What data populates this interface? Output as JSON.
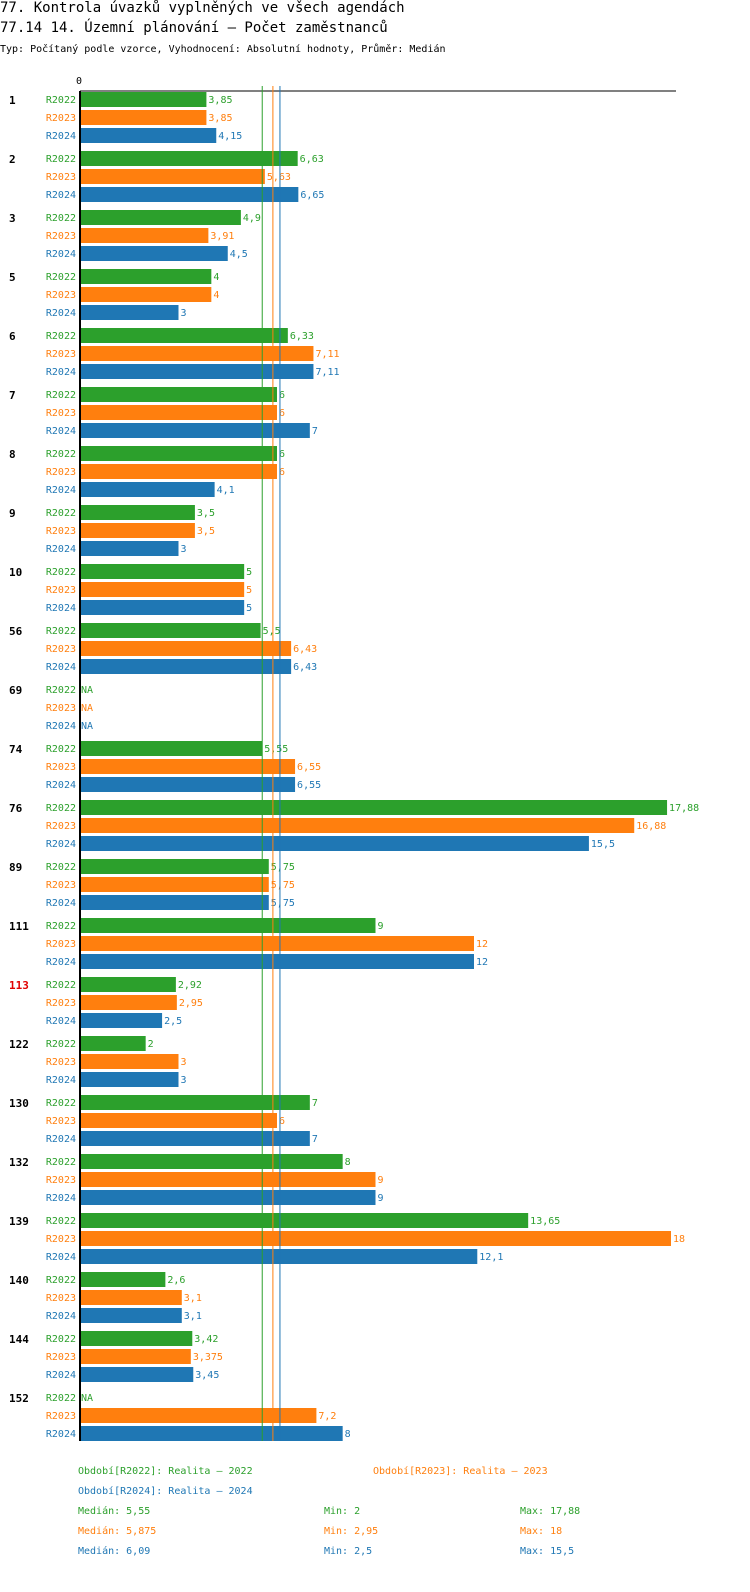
{
  "header": {
    "title": "77. Kontrola úvazků vyplněných ve všech agendách",
    "chart_title": "77.14 14. Územní plánování – Počet zaměstnanců",
    "subtitle": "Typ: Počítaný podle vzorce, Vyhodnocení: Absolutní hodnoty, Průměr: Medián"
  },
  "colors": {
    "R2022": "#2ca02c",
    "R2023": "#ff7f0e",
    "R2024": "#1f77b4",
    "highlight": "#e00000"
  },
  "chart_data": {
    "type": "bar",
    "orientation": "horizontal",
    "title": "77.14 14. Územní plánování – Počet zaměstnanců",
    "axis_zero_label": "0",
    "xlim": [
      0,
      18
    ],
    "missing_label": "NA",
    "highlight_category": "113",
    "categories": [
      "1",
      "2",
      "3",
      "5",
      "6",
      "7",
      "8",
      "9",
      "10",
      "56",
      "69",
      "74",
      "76",
      "89",
      "111",
      "113",
      "122",
      "130",
      "132",
      "139",
      "140",
      "144",
      "152"
    ],
    "series": [
      {
        "name": "R2022",
        "values": [
          3.85,
          6.63,
          4.9,
          4,
          6.33,
          6,
          6,
          3.5,
          5,
          5.5,
          null,
          5.55,
          17.88,
          5.75,
          9,
          2.92,
          2,
          7,
          8,
          13.65,
          2.6,
          3.42,
          null
        ],
        "labels": [
          "3,85",
          "6,63",
          "4,9",
          "4",
          "6,33",
          "6",
          "6",
          "3,5",
          "5",
          "5,5",
          "NA",
          "5,55",
          "17,88",
          "5,75",
          "9",
          "2,92",
          "2",
          "7",
          "8",
          "13,65",
          "2,6",
          "3,42",
          "NA"
        ]
      },
      {
        "name": "R2023",
        "values": [
          3.85,
          5.63,
          3.91,
          4,
          7.11,
          6,
          6,
          3.5,
          5,
          6.43,
          null,
          6.55,
          16.88,
          5.75,
          12,
          2.95,
          3,
          6,
          9,
          18,
          3.1,
          3.375,
          7.2
        ],
        "labels": [
          "3,85",
          "5,63",
          "3,91",
          "4",
          "7,11",
          "6",
          "6",
          "3,5",
          "5",
          "6,43",
          "NA",
          "6,55",
          "16,88",
          "5,75",
          "12",
          "2,95",
          "3",
          "6",
          "9",
          "18",
          "3,1",
          "3,375",
          "7,2"
        ]
      },
      {
        "name": "R2024",
        "values": [
          4.15,
          6.65,
          4.5,
          3,
          7.11,
          7,
          4.1,
          3,
          5,
          6.43,
          null,
          6.55,
          15.5,
          5.75,
          12,
          2.5,
          3,
          7,
          9,
          12.1,
          3.1,
          3.45,
          8
        ],
        "labels": [
          "4,15",
          "6,65",
          "4,5",
          "3",
          "7,11",
          "7",
          "4,1",
          "3",
          "5",
          "6,43",
          "NA",
          "6,55",
          "15,5",
          "5,75",
          "12",
          "2,5",
          "3",
          "7",
          "9",
          "12,1",
          "3,1",
          "3,45",
          "8"
        ]
      }
    ],
    "reference_lines": [
      {
        "series": "R2022",
        "stat": "median",
        "value": 5.55
      },
      {
        "series": "R2023",
        "stat": "median",
        "value": 5.875
      },
      {
        "series": "R2024",
        "stat": "median",
        "value": 6.09
      }
    ]
  },
  "legend": {
    "r2022": "Období[R2022]: Realita – 2022",
    "r2023": "Období[R2023]: Realita – 2023",
    "r2024": "Období[R2024]: Realita – 2024"
  },
  "stats": [
    {
      "median": "Medián: 5,55",
      "min": "Min: 2",
      "max": "Max: 17,88"
    },
    {
      "median": "Medián: 5,875",
      "min": "Min: 2,95",
      "max": "Max: 18"
    },
    {
      "median": "Medián: 6,09",
      "min": "Min: 2,5",
      "max": "Max: 15,5"
    }
  ]
}
